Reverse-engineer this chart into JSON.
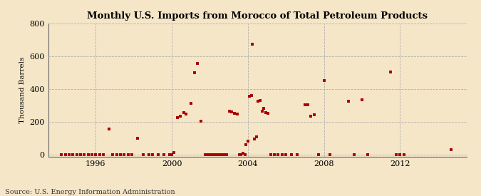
{
  "title": "Monthly U.S. Imports from Morocco of Total Petroleum Products",
  "ylabel": "Thousand Barrels",
  "source": "Source: U.S. Energy Information Administration",
  "background_color": "#f5e6c8",
  "dot_color": "#aa0000",
  "xlim": [
    1993.5,
    2015.5
  ],
  "ylim": [
    -15,
    800
  ],
  "yticks": [
    0,
    200,
    400,
    600,
    800
  ],
  "xticks": [
    1996,
    2000,
    2004,
    2008,
    2012
  ],
  "data_points": [
    [
      1994.2,
      0
    ],
    [
      1994.4,
      0
    ],
    [
      1994.6,
      0
    ],
    [
      1994.8,
      0
    ],
    [
      1995.0,
      0
    ],
    [
      1995.2,
      0
    ],
    [
      1995.4,
      0
    ],
    [
      1995.6,
      0
    ],
    [
      1995.8,
      0
    ],
    [
      1996.0,
      0
    ],
    [
      1996.2,
      0
    ],
    [
      1996.4,
      0
    ],
    [
      1996.7,
      155
    ],
    [
      1996.9,
      0
    ],
    [
      1997.1,
      0
    ],
    [
      1997.3,
      0
    ],
    [
      1997.5,
      0
    ],
    [
      1997.7,
      0
    ],
    [
      1997.9,
      0
    ],
    [
      1998.2,
      100
    ],
    [
      1998.5,
      0
    ],
    [
      1998.8,
      0
    ],
    [
      1999.0,
      0
    ],
    [
      1999.3,
      0
    ],
    [
      1999.6,
      0
    ],
    [
      1999.9,
      0
    ],
    [
      2000.0,
      0
    ],
    [
      2000.1,
      10
    ],
    [
      2000.3,
      225
    ],
    [
      2000.45,
      235
    ],
    [
      2000.65,
      255
    ],
    [
      2000.75,
      245
    ],
    [
      2001.0,
      310
    ],
    [
      2001.2,
      500
    ],
    [
      2001.35,
      555
    ],
    [
      2001.55,
      205
    ],
    [
      2001.75,
      0
    ],
    [
      2001.9,
      0
    ],
    [
      2002.0,
      0
    ],
    [
      2002.15,
      0
    ],
    [
      2002.3,
      0
    ],
    [
      2002.45,
      0
    ],
    [
      2002.6,
      0
    ],
    [
      2002.75,
      0
    ],
    [
      2002.9,
      0
    ],
    [
      2003.05,
      265
    ],
    [
      2003.15,
      260
    ],
    [
      2003.3,
      250
    ],
    [
      2003.45,
      245
    ],
    [
      2003.55,
      0
    ],
    [
      2003.65,
      0
    ],
    [
      2003.75,
      5
    ],
    [
      2003.85,
      0
    ],
    [
      2003.9,
      60
    ],
    [
      2004.0,
      80
    ],
    [
      2004.1,
      355
    ],
    [
      2004.2,
      360
    ],
    [
      2004.25,
      675
    ],
    [
      2004.35,
      95
    ],
    [
      2004.45,
      105
    ],
    [
      2004.55,
      325
    ],
    [
      2004.65,
      330
    ],
    [
      2004.75,
      265
    ],
    [
      2004.85,
      280
    ],
    [
      2004.95,
      255
    ],
    [
      2005.05,
      250
    ],
    [
      2005.2,
      0
    ],
    [
      2005.4,
      0
    ],
    [
      2005.6,
      0
    ],
    [
      2005.8,
      0
    ],
    [
      2006.0,
      0
    ],
    [
      2006.3,
      0
    ],
    [
      2006.6,
      0
    ],
    [
      2007.0,
      305
    ],
    [
      2007.15,
      305
    ],
    [
      2007.3,
      235
    ],
    [
      2007.5,
      240
    ],
    [
      2007.7,
      0
    ],
    [
      2008.0,
      450
    ],
    [
      2008.3,
      0
    ],
    [
      2009.3,
      325
    ],
    [
      2009.6,
      0
    ],
    [
      2010.0,
      335
    ],
    [
      2010.3,
      0
    ],
    [
      2011.5,
      505
    ],
    [
      2011.8,
      0
    ],
    [
      2012.0,
      0
    ],
    [
      2012.2,
      0
    ],
    [
      2014.7,
      30
    ]
  ]
}
